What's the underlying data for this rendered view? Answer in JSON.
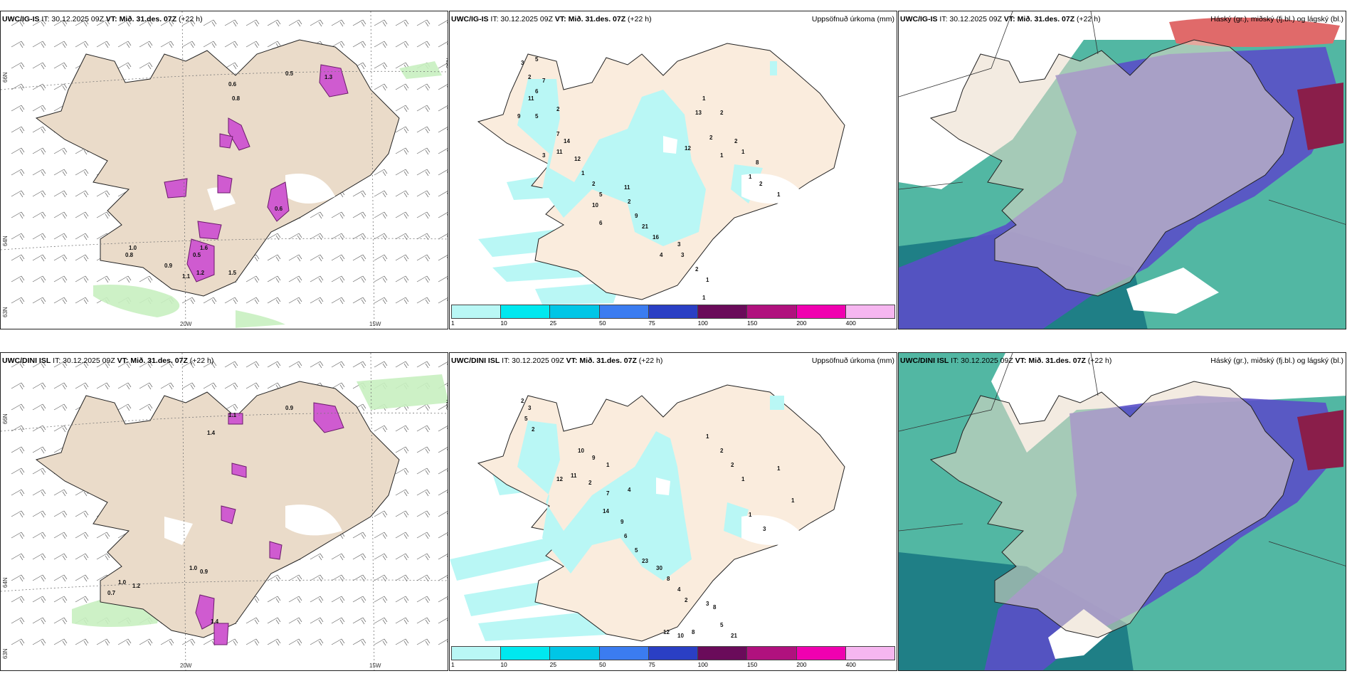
{
  "panels": [
    {
      "model": "UWC/IG-IS",
      "it": "IT: 30.12.2025 09Z",
      "vt": "VT: Mið. 31.des. 07Z",
      "lead": "(+22 h)",
      "right": ""
    },
    {
      "model": "UWC/IG-IS",
      "it": "IT: 30.12.2025 09Z",
      "vt": "VT: Mið. 31.des. 07Z",
      "lead": "(+22 h)",
      "right": "Uppsöfnuð úrkoma (mm)"
    },
    {
      "model": "UWC/IG-IS",
      "it": "IT: 30.12.2025 09Z",
      "vt": "VT: Mið. 31.des. 07Z",
      "lead": "(+22 h)",
      "right": "Háský (gr.), miðský (fj.bl.) og lágský (bl.)"
    },
    {
      "model": "UWC/DINI ISL",
      "it": "IT: 30.12.2025 09Z",
      "vt": "VT: Mið. 31.des. 07Z",
      "lead": "(+22 h)",
      "right": ""
    },
    {
      "model": "UWC/DINI ISL",
      "it": "IT: 30.12.2025 09Z",
      "vt": "VT: Mið. 31.des. 07Z",
      "lead": "(+22 h)",
      "right": "Uppsöfnuð úrkoma (mm)"
    },
    {
      "model": "UWC/DINI ISL",
      "it": "IT: 30.12.2025 09Z",
      "vt": "VT: Mið. 31.des. 07Z",
      "lead": "(+22 h)",
      "right": "Háský (gr.), miðský (fj.bl.) og lágský (bl.)"
    }
  ],
  "gridlabels": {
    "lat66": "66N",
    "lat64": "64N",
    "lat63": "63N",
    "lon20": "20W",
    "lon15": "15W"
  },
  "precip_legend": {
    "ticks": [
      "1",
      "10",
      "25",
      "50",
      "75",
      "100",
      "150",
      "200",
      "400"
    ],
    "colors": [
      "#b9f7f5",
      "#00e8ef",
      "#00c6e6",
      "#3b7cf0",
      "#2a3fc4",
      "#6a0b5a",
      "#b0117e",
      "#f000b0",
      "#f6b6f0"
    ]
  },
  "labels": {
    "wind_top": [
      "0.5",
      "0.6",
      "0.8",
      "1.3",
      "0.6",
      "0.8",
      "1.0",
      "0.9",
      "1.1",
      "1.2",
      "0.5",
      "1.6",
      "1.5"
    ],
    "wind_bot": [
      "0.9",
      "1.1",
      "1.4",
      "0.7",
      "1.0",
      "1.2",
      "1.0",
      "0.9",
      "1.4"
    ],
    "precip_top": [
      "3",
      "5",
      "2",
      "7",
      "6",
      "11",
      "2",
      "5",
      "9",
      "7",
      "14",
      "3",
      "11",
      "12",
      "1",
      "2",
      "5",
      "10",
      "6",
      "11",
      "2",
      "9",
      "21",
      "16",
      "4",
      "3",
      "3",
      "2",
      "1",
      "1",
      "8",
      "12",
      "13",
      "1",
      "2",
      "2",
      "1",
      "2",
      "1",
      "1",
      "2",
      "1"
    ],
    "precip_bot": [
      "2",
      "3",
      "5",
      "2",
      "10",
      "9",
      "1",
      "12",
      "11",
      "2",
      "7",
      "4",
      "14",
      "9",
      "6",
      "5",
      "23",
      "30",
      "8",
      "4",
      "2",
      "12",
      "10",
      "8",
      "3",
      "8",
      "5",
      "21",
      "1",
      "3",
      "1",
      "2",
      "2",
      "1",
      "1",
      "1"
    ]
  }
}
